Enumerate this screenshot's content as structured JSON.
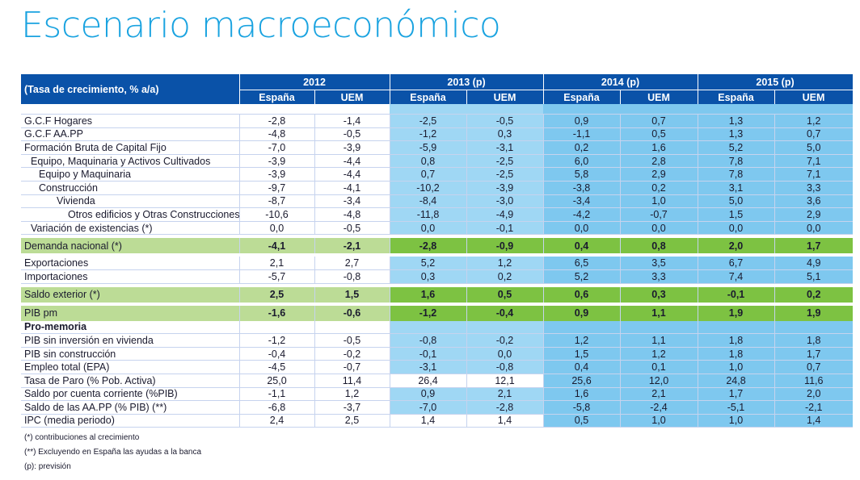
{
  "title": "Escenario macroeconómico",
  "table": {
    "corner_label": "(Tasa de crecimiento, % a/a)",
    "years": [
      "2012",
      "2013 (p)",
      "2014 (p)",
      "2015 (p)"
    ],
    "subcols": [
      "España",
      "UEM",
      "España",
      "UEM",
      "España",
      "UEM",
      "España",
      "UEM"
    ],
    "rows": [
      {
        "label": "G.C.F Hogares",
        "values": [
          "-2,8",
          "-1,4",
          "-2,5",
          "-0,5",
          "0,9",
          "0,7",
          "1,3",
          "1,2"
        ]
      },
      {
        "label": "G.C.F AA.PP",
        "values": [
          "-4,8",
          "-0,5",
          "-1,2",
          "0,3",
          "-1,1",
          "0,5",
          "1,3",
          "0,7"
        ]
      },
      {
        "label": "Formación Bruta de Capital Fijo",
        "values": [
          "-7,0",
          "-3,9",
          "-5,9",
          "-3,1",
          "0,2",
          "1,6",
          "5,2",
          "5,0"
        ]
      },
      {
        "label": "Equipo, Maquinaria y Activos Cultivados",
        "values": [
          "-3,9",
          "-4,4",
          "0,8",
          "-2,5",
          "6,0",
          "2,8",
          "7,8",
          "7,1"
        ]
      },
      {
        "label": "Equipo y Maquinaria",
        "values": [
          "-3,9",
          "-4,4",
          "0,7",
          "-2,5",
          "5,8",
          "2,9",
          "7,8",
          "7,1"
        ]
      },
      {
        "label": "Construcción",
        "values": [
          "-9,7",
          "-4,1",
          "-10,2",
          "-3,9",
          "-3,8",
          "0,2",
          "3,1",
          "3,3"
        ]
      },
      {
        "label": "Vivienda",
        "values": [
          "-8,7",
          "-3,4",
          "-8,4",
          "-3,0",
          "-3,4",
          "1,0",
          "5,0",
          "3,6"
        ]
      },
      {
        "label": "Otros edificios y Otras Construcciones",
        "values": [
          "-10,6",
          "-4,8",
          "-11,8",
          "-4,9",
          "-4,2",
          "-0,7",
          "1,5",
          "2,9"
        ]
      },
      {
        "label": "Variación de existencias (*)",
        "values": [
          "0,0",
          "-0,5",
          "0,0",
          "-0,1",
          "0,0",
          "0,0",
          "0,0",
          "0,0"
        ]
      },
      {
        "label": "Demanda nacional (*)",
        "values": [
          "-4,1",
          "-2,1",
          "-2,8",
          "-0,9",
          "0,4",
          "0,8",
          "2,0",
          "1,7"
        ]
      },
      {
        "label": "Exportaciones",
        "values": [
          "2,1",
          "2,7",
          "5,2",
          "1,2",
          "6,5",
          "3,5",
          "6,7",
          "4,9"
        ]
      },
      {
        "label": "Importaciones",
        "values": [
          "-5,7",
          "-0,8",
          "0,3",
          "0,2",
          "5,2",
          "3,3",
          "7,4",
          "5,1"
        ]
      },
      {
        "label": "Saldo exterior (*)",
        "values": [
          "2,5",
          "1,5",
          "1,6",
          "0,5",
          "0,6",
          "0,3",
          "-0,1",
          "0,2"
        ]
      },
      {
        "label": "PIB pm",
        "values": [
          "-1,6",
          "-0,6",
          "-1,2",
          "-0,4",
          "0,9",
          "1,1",
          "1,9",
          "1,9"
        ]
      },
      {
        "label": "Pro-memoria"
      },
      {
        "label": "PIB sin inversión en vivienda",
        "values": [
          "-1,2",
          "-0,5",
          "-0,8",
          "-0,2",
          "1,2",
          "1,1",
          "1,8",
          "1,8"
        ]
      },
      {
        "label": "PIB sin construcción",
        "values": [
          "-0,4",
          "-0,2",
          "-0,1",
          "0,0",
          "1,5",
          "1,2",
          "1,8",
          "1,7"
        ]
      },
      {
        "label": "Empleo total (EPA)",
        "values": [
          "-4,5",
          "-0,7",
          "-3,1",
          "-0,8",
          "0,4",
          "0,1",
          "1,0",
          "0,7"
        ]
      },
      {
        "label": "Tasa de Paro (% Pob. Activa)",
        "values": [
          "25,0",
          "11,4",
          "26,4",
          "12,1",
          "25,6",
          "12,0",
          "24,8",
          "11,6"
        ]
      },
      {
        "label": "Saldo por cuenta corriente (%PIB)",
        "values": [
          "-1,1",
          "1,2",
          "0,9",
          "2,1",
          "1,6",
          "2,1",
          "1,7",
          "2,0"
        ]
      },
      {
        "label": "Saldo de las AA.PP (% PIB) (**)",
        "values": [
          "-6,8",
          "-3,7",
          "-7,0",
          "-2,8",
          "-5,8",
          "-2,4",
          "-5,1",
          "-2,1"
        ]
      },
      {
        "label": "IPC (media periodo)",
        "values": [
          "2,4",
          "2,5",
          "1,4",
          "1,4",
          "0,5",
          "1,0",
          "1,0",
          "1,4"
        ]
      }
    ]
  },
  "notes": [
    "(*) contribuciones al crecimiento",
    "(**) Excluyendo en España las ayudas a la banca",
    "(p): previsión"
  ],
  "colors": {
    "title": "#1aa3e0",
    "header": "#0a52a8",
    "green_row": "#7dc242",
    "green_row_light": "#bcdc96",
    "blue_cells": "#7ec8ef",
    "light_blue_cells": "#9fd7f4"
  }
}
